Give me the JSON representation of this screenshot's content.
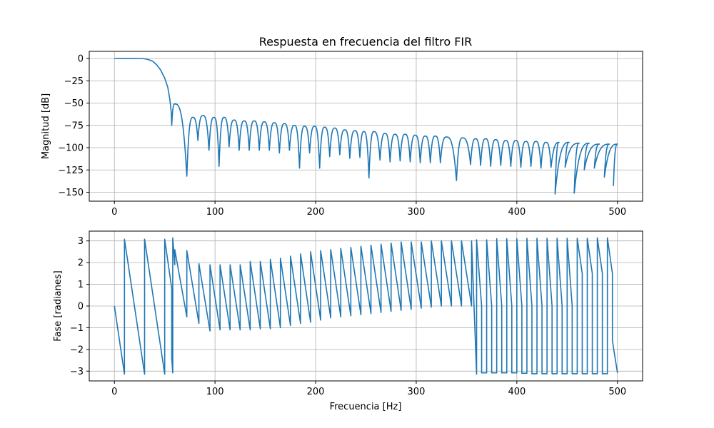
{
  "chart_data": [
    {
      "type": "line",
      "title": "Respuesta en frecuencia del filtro FIR",
      "xlabel": "",
      "ylabel": "Magnitud [dB]",
      "xlim": [
        -25,
        525
      ],
      "ylim": [
        -160,
        8
      ],
      "xticks": [
        0,
        100,
        200,
        300,
        400,
        500
      ],
      "yticks": [
        0,
        -25,
        -50,
        -75,
        -100,
        -125,
        -150
      ],
      "ytick_labels": [
        "0",
        "−25",
        "−50",
        "−75",
        "−100",
        "−125",
        "−150"
      ],
      "grid": true,
      "color": "#1f77b4",
      "passband": [
        [
          0,
          0
        ],
        [
          10,
          0.05
        ],
        [
          20,
          0.2
        ],
        [
          28,
          0
        ],
        [
          33,
          -1
        ],
        [
          38,
          -3
        ],
        [
          42,
          -7
        ],
        [
          46,
          -13
        ],
        [
          50,
          -22
        ],
        [
          53,
          -32
        ],
        [
          55,
          -45
        ],
        [
          56.5,
          -60
        ],
        [
          57,
          -75
        ]
      ],
      "sidelobe_nulls": [
        [
          57,
          -75
        ],
        [
          72,
          -132
        ],
        [
          83,
          -92
        ],
        [
          94,
          -103
        ],
        [
          104,
          -121
        ],
        [
          114,
          -99
        ],
        [
          124,
          -103
        ],
        [
          134,
          -103
        ],
        [
          144,
          -103
        ],
        [
          154,
          -103
        ],
        [
          164,
          -106
        ],
        [
          174,
          -103
        ],
        [
          184,
          -123
        ],
        [
          194,
          -106
        ],
        [
          204,
          -123
        ],
        [
          214,
          -110
        ],
        [
          224,
          -108
        ],
        [
          234,
          -112
        ],
        [
          244,
          -111
        ],
        [
          253,
          -134
        ],
        [
          264,
          -114
        ],
        [
          274,
          -116
        ],
        [
          284,
          -115
        ],
        [
          294,
          -116
        ],
        [
          304,
          -117
        ],
        [
          314,
          -117
        ],
        [
          324,
          -117
        ],
        [
          340,
          -137
        ],
        [
          354,
          -119
        ],
        [
          364,
          -120
        ],
        [
          374,
          -121
        ],
        [
          384,
          -120
        ],
        [
          394,
          -121
        ],
        [
          404,
          -122
        ],
        [
          414,
          -121
        ],
        [
          424,
          -123
        ],
        [
          434,
          -122
        ],
        [
          438,
          -152
        ],
        [
          448,
          -122
        ],
        [
          457,
          -151
        ],
        [
          467,
          -125
        ],
        [
          477,
          -123
        ],
        [
          487,
          -133
        ],
        [
          496,
          -143
        ]
      ],
      "sidelobe_peaks": [
        [
          60,
          -51
        ],
        [
          78,
          -66
        ],
        [
          88,
          -64
        ],
        [
          99,
          -66
        ],
        [
          109,
          -66
        ],
        [
          119,
          -69
        ],
        [
          129,
          -70
        ],
        [
          139,
          -70
        ],
        [
          149,
          -71
        ],
        [
          159,
          -72
        ],
        [
          169,
          -73
        ],
        [
          179,
          -75
        ],
        [
          189,
          -76
        ],
        [
          199,
          -76
        ],
        [
          209,
          -77
        ],
        [
          219,
          -78
        ],
        [
          229,
          -80
        ],
        [
          239,
          -81
        ],
        [
          248,
          -82
        ],
        [
          258,
          -82
        ],
        [
          269,
          -84
        ],
        [
          279,
          -85
        ],
        [
          289,
          -85
        ],
        [
          299,
          -86
        ],
        [
          309,
          -87
        ],
        [
          319,
          -87
        ],
        [
          330,
          -88
        ],
        [
          346,
          -89
        ],
        [
          359,
          -90
        ],
        [
          369,
          -90
        ],
        [
          379,
          -91
        ],
        [
          389,
          -92
        ],
        [
          399,
          -92
        ],
        [
          409,
          -93
        ],
        [
          419,
          -93
        ],
        [
          429,
          -94
        ],
        [
          442,
          -94
        ],
        [
          452,
          -94
        ],
        [
          462,
          -95
        ],
        [
          472,
          -95
        ],
        [
          482,
          -96
        ],
        [
          492,
          -96
        ],
        [
          500,
          -96
        ]
      ]
    },
    {
      "type": "line",
      "title": "",
      "xlabel": "Frecuencia [Hz]",
      "ylabel": "Fase [radianes]",
      "xlim": [
        -25,
        525
      ],
      "ylim": [
        -3.45,
        3.45
      ],
      "xticks": [
        0,
        100,
        200,
        300,
        400,
        500
      ],
      "yticks": [
        3,
        2,
        1,
        0,
        -1,
        -2,
        -3
      ],
      "ytick_labels": [
        "3",
        "2",
        "1",
        "0",
        "−1",
        "−2",
        "−3"
      ],
      "grid": true,
      "color": "#1f77b4",
      "x": [
        0,
        10,
        10,
        30,
        30,
        50,
        50,
        57,
        57,
        58,
        58,
        60,
        60,
        72,
        72,
        84,
        84,
        95,
        95,
        105,
        105,
        115,
        115,
        125,
        125,
        135,
        135,
        145,
        145,
        155,
        155,
        165,
        165,
        175,
        175,
        185,
        185,
        195,
        195,
        205,
        205,
        215,
        215,
        225,
        225,
        235,
        235,
        245,
        245,
        255,
        255,
        265,
        265,
        275,
        275,
        285,
        285,
        295,
        295,
        305,
        305,
        315,
        315,
        325,
        325,
        335,
        335,
        345,
        345,
        355,
        355,
        360,
        360,
        365,
        365,
        370,
        370,
        375,
        375,
        380,
        380,
        385,
        385,
        390,
        390,
        395,
        395,
        400,
        400,
        405,
        405,
        410,
        410,
        415,
        415,
        420,
        420,
        425,
        425,
        430,
        430,
        435,
        435,
        440,
        440,
        445,
        445,
        450,
        450,
        455,
        455,
        460,
        460,
        465,
        465,
        470,
        470,
        475,
        475,
        480,
        480,
        485,
        485,
        490,
        490,
        495,
        495,
        500
      ],
      "y": [
        0,
        -3.14,
        3.08,
        -3.14,
        3.08,
        -3.14,
        3.08,
        0.8,
        -2.4,
        -3.08,
        3.14,
        1.9,
        2.6,
        -0.5,
        2.55,
        -0.8,
        1.95,
        -1.15,
        1.9,
        -1.1,
        1.9,
        -1.1,
        1.9,
        -1.1,
        1.9,
        -1.1,
        2.05,
        -1.05,
        2.05,
        -1.05,
        2.15,
        -1.0,
        2.2,
        -0.9,
        2.3,
        -0.8,
        2.4,
        -0.75,
        2.5,
        -0.65,
        2.55,
        -0.55,
        2.6,
        -0.5,
        2.65,
        -0.45,
        2.7,
        -0.4,
        2.75,
        -0.35,
        2.8,
        -0.3,
        2.85,
        -0.25,
        2.9,
        -0.2,
        2.95,
        -0.15,
        2.95,
        -0.1,
        2.95,
        -0.05,
        3.0,
        0.0,
        3.0,
        0.0,
        3.0,
        0.0,
        3.0,
        0.0,
        3.0,
        -3.14,
        3.05,
        0.0,
        -3.08,
        -3.08,
        3.05,
        0.0,
        -3.08,
        -3.08,
        3.1,
        0.0,
        -3.08,
        -3.08,
        3.1,
        0.0,
        -3.08,
        -3.08,
        3.1,
        0.0,
        -3.1,
        -3.1,
        3.12,
        0.0,
        -3.12,
        -3.12,
        3.12,
        0.0,
        -3.12,
        -3.12,
        3.12,
        0.0,
        -3.12,
        -3.12,
        3.12,
        0.0,
        -3.12,
        -3.12,
        3.12,
        0.0,
        -3.12,
        -3.12,
        3.12,
        1.5,
        -3.12,
        -3.12,
        3.12,
        1.5,
        -3.12,
        -3.12,
        3.14,
        1.5,
        -3.12,
        -3.12,
        3.14,
        1.5,
        -1.6,
        -3.08
      ]
    }
  ]
}
